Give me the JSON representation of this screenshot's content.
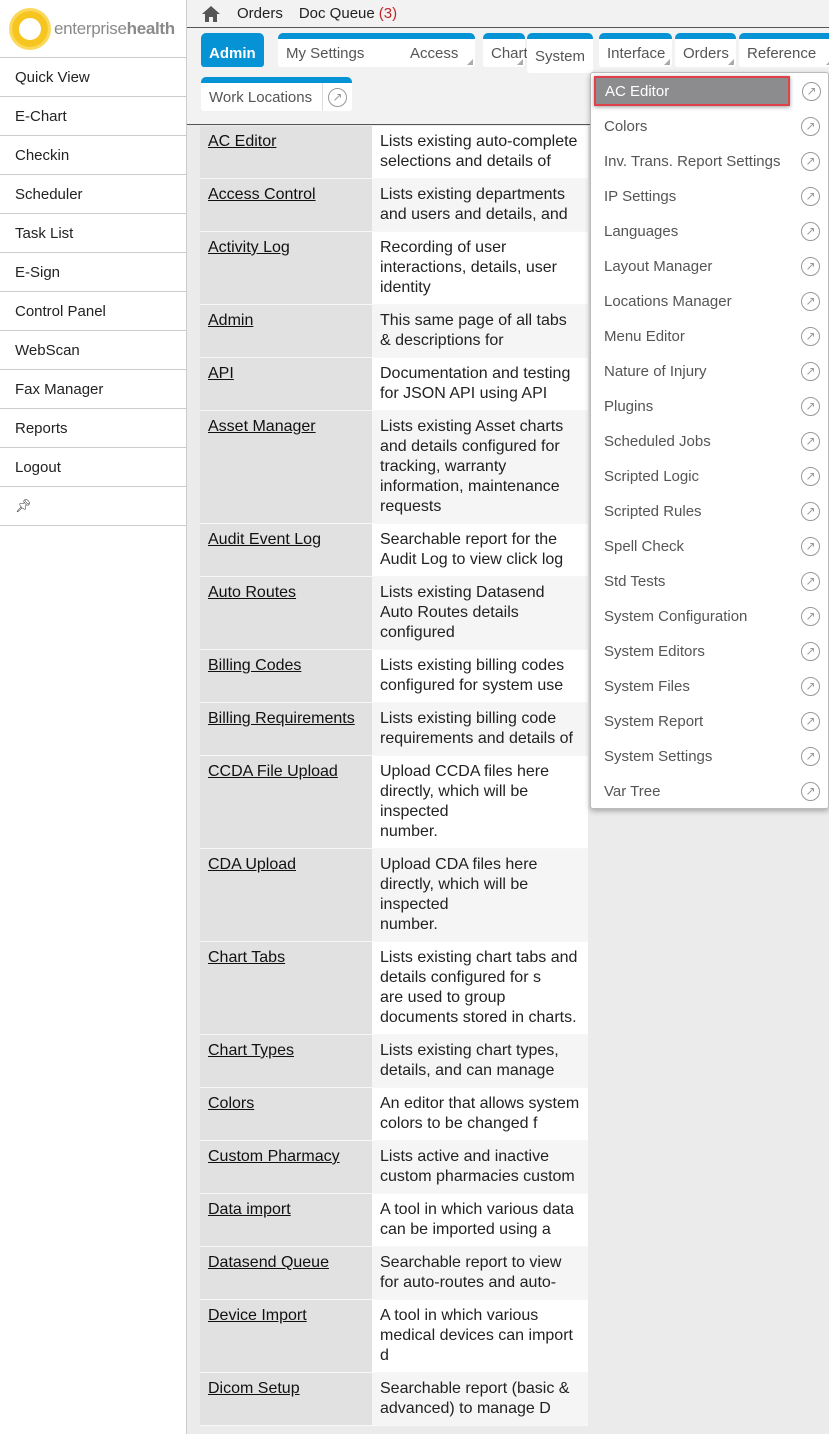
{
  "brand": {
    "name_light": "enterprise",
    "name_bold": "health",
    "accent": "#0593d5",
    "logo_color": "#f7c520"
  },
  "sidebar": {
    "items": [
      "Quick View",
      "E-Chart",
      "Checkin",
      "Scheduler",
      "Task List",
      "E-Sign",
      "Control Panel",
      "WebScan",
      "Fax Manager",
      "Reports",
      "Logout"
    ],
    "pin_icon": "pin-icon"
  },
  "topbar": {
    "home_icon": "home-icon",
    "orders": "Orders",
    "doc_queue": "Doc Queue",
    "doc_queue_count": "(3)"
  },
  "tabs": [
    {
      "label": "Admin",
      "active": true
    },
    {
      "label": "My Settings",
      "popout": true
    },
    {
      "label": "Access"
    },
    {
      "label": "Chart"
    },
    {
      "label": "System",
      "open": true
    },
    {
      "label": "Interface"
    },
    {
      "label": "Orders"
    },
    {
      "label": "Reference"
    },
    {
      "label": "Work Locations",
      "popout": true
    }
  ],
  "rows": [
    {
      "name": "AC Editor",
      "desc": "Lists existing auto-complete selections and details of"
    },
    {
      "name": "Access Control",
      "desc": "Lists existing departments and users and details, and"
    },
    {
      "name": "Activity Log",
      "desc": "Recording of user interactions, details, user identity"
    },
    {
      "name": "Admin",
      "desc": "This same page of all tabs & descriptions for"
    },
    {
      "name": "API",
      "desc": "Documentation and testing for JSON API using API"
    },
    {
      "name": "Asset Manager",
      "desc": "Lists existing Asset charts and details configured for",
      "desc2": "tracking, warranty information, maintenance requests"
    },
    {
      "name": "Audit Event Log",
      "desc": "Searchable report for the Audit Log to view click log"
    },
    {
      "name": "Auto Routes",
      "desc": "Lists existing Datasend Auto Routes details configured"
    },
    {
      "name": "Billing Codes",
      "desc": "Lists existing billing codes configured for system use"
    },
    {
      "name": "Billing Requirements",
      "desc": "Lists existing billing code requirements and details of"
    },
    {
      "name": "CCDA File Upload",
      "desc": "Upload CCDA files here directly, which will be inspected",
      "desc2": "number."
    },
    {
      "name": "CDA Upload",
      "desc": "Upload CDA files here directly, which will be inspected",
      "desc2": "number."
    },
    {
      "name": "Chart Tabs",
      "desc": "Lists existing chart tabs and details configured for s",
      "desc2": "are used to group documents stored in charts."
    },
    {
      "name": "Chart Types",
      "desc": "Lists existing chart types, details, and can manage"
    },
    {
      "name": "Colors",
      "desc": "An editor that allows system colors to be changed f"
    },
    {
      "name": "Custom Pharmacy",
      "desc": "Lists active and inactive custom pharmacies custom"
    },
    {
      "name": "Data import",
      "desc": "A tool in which various data can be imported using a"
    },
    {
      "name": "Datasend Queue",
      "desc": "Searchable report to view for auto-routes and auto-"
    },
    {
      "name": "Device Import",
      "desc": "A tool in which various medical devices can import d"
    },
    {
      "name": "Dicom Setup",
      "desc": "Searchable report (basic & advanced) to manage D"
    }
  ],
  "dropdown": {
    "items": [
      "AC Editor",
      "Colors",
      "Inv. Trans. Report Settings",
      "IP Settings",
      "Languages",
      "Layout Manager",
      "Locations Manager",
      "Menu Editor",
      "Nature of Injury",
      "Plugins",
      "Scheduled Jobs",
      "Scripted Logic",
      "Scripted Rules",
      "Spell Check",
      "Std Tests",
      "System Configuration",
      "System Editors",
      "System Files",
      "System Report",
      "System Settings",
      "Var Tree"
    ],
    "selected": "AC Editor"
  }
}
